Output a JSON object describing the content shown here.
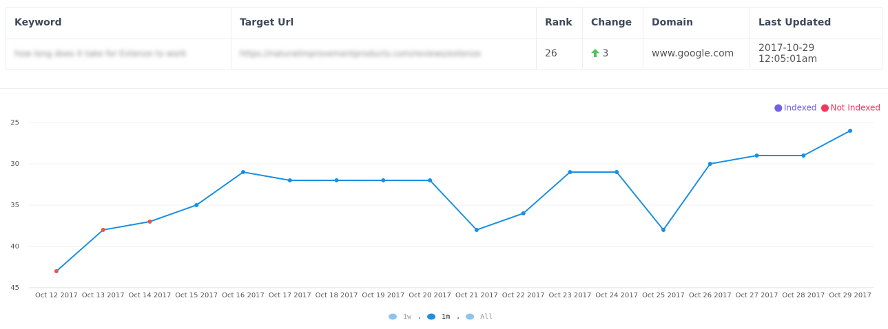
{
  "table": {
    "headers": [
      "Keyword",
      "Target Url",
      "Rank",
      "Change",
      "Domain",
      "Last Updated"
    ],
    "rows": [
      [
        "how long does it take for Extenze to work",
        "https://naturalimprovementproducts.com/reviews/extenze",
        26,
        3,
        "www.google.com",
        "2017-10-29 12:05:01am"
      ]
    ]
  },
  "chart_data": {
    "type": "line",
    "categories": [
      "Oct 12 2017",
      "Oct 13 2017",
      "Oct 14 2017",
      "Oct 15 2017",
      "Oct 16 2017",
      "Oct 17 2017",
      "Oct 18 2017",
      "Oct 19 2017",
      "Oct 20 2017",
      "Oct 21 2017",
      "Oct 22 2017",
      "Oct 23 2017",
      "Oct 24 2017",
      "Oct 25 2017",
      "Oct 26 2017",
      "Oct 27 2017",
      "Oct 28 2017",
      "Oct 29 2017"
    ],
    "series": [
      {
        "color": "#1a8fe3",
        "values": [
          43,
          38,
          37,
          35,
          31,
          32,
          32,
          32,
          32,
          38,
          36,
          31,
          31,
          38,
          30,
          29,
          29,
          26
        ],
        "indexed": [
          false,
          false,
          false,
          true,
          true,
          true,
          true,
          true,
          true,
          true,
          true,
          true,
          true,
          true,
          true,
          true,
          true,
          true
        ]
      }
    ],
    "point_colors": {
      "indexed": "#1a8fe3",
      "not_indexed": "#e8534f"
    },
    "legend": [
      {
        "name": "Indexed",
        "color": "#7160e8"
      },
      {
        "name": "Not Indexed",
        "color": "#f5365c"
      }
    ],
    "ylim": [
      45,
      25
    ],
    "yticks": [
      25,
      30,
      35,
      40,
      45
    ],
    "grid": true,
    "ranges": [
      "1w",
      "1m",
      "All"
    ],
    "active_range": "1m"
  }
}
